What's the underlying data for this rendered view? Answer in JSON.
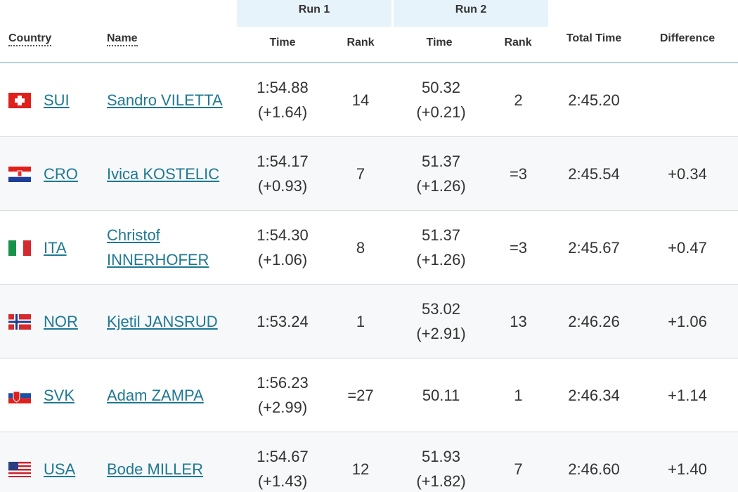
{
  "table": {
    "group_headers": [
      "Run 1",
      "Run 2"
    ],
    "headers": [
      "Country",
      "Name",
      "Time",
      "Rank",
      "Time",
      "Rank",
      "Total Time",
      "Difference"
    ],
    "rows": [
      {
        "country": "SUI",
        "name": "Sandro VILETTA",
        "run1_time": "1:54.88",
        "run1_gap": "(+1.64)",
        "run1_rank": "14",
        "run2_time": "50.32",
        "run2_gap": "(+0.21)",
        "run2_rank": "2",
        "total": "2:45.20"
      },
      {
        "country": "CRO",
        "name": "Ivica KOSTELIC",
        "run1_time": "1:54.17",
        "run1_gap": "(+0.93)",
        "run1_rank": "7",
        "run2_time": "51.37",
        "run2_gap": "(+1.26)",
        "run2_rank": "=3",
        "total": "2:45.54",
        "difference": "+0.34"
      },
      {
        "country": "ITA",
        "name": "Christof INNERHOFER",
        "run1_time": "1:54.30",
        "run1_gap": "(+1.06)",
        "run1_rank": "8",
        "run2_time": "51.37",
        "run2_gap": "(+1.26)",
        "run2_rank": "=3",
        "total": "2:45.67",
        "difference": "+0.47"
      },
      {
        "country": "NOR",
        "name": "Kjetil JANSRUD",
        "run1_time": "1:53.24",
        "run1_rank": "1",
        "run2_time": "53.02",
        "run2_gap": "(+2.91)",
        "run2_rank": "13",
        "total": "2:46.26",
        "difference": "+1.06"
      },
      {
        "country": "SVK",
        "name": "Adam ZAMPA",
        "run1_time": "1:56.23",
        "run1_gap": "(+2.99)",
        "run1_rank": "=27",
        "run2_time": "50.11",
        "run2_rank": "1",
        "total": "2:46.34",
        "difference": "+1.14"
      },
      {
        "country": "USA",
        "name": "Bode MILLER",
        "run1_time": "1:54.67",
        "run1_gap": "(+1.43)",
        "run1_rank": "12",
        "run2_time": "51.93",
        "run2_gap": "(+1.82)",
        "run2_rank": "7",
        "total": "2:46.60",
        "difference": "+1.40"
      }
    ]
  }
}
